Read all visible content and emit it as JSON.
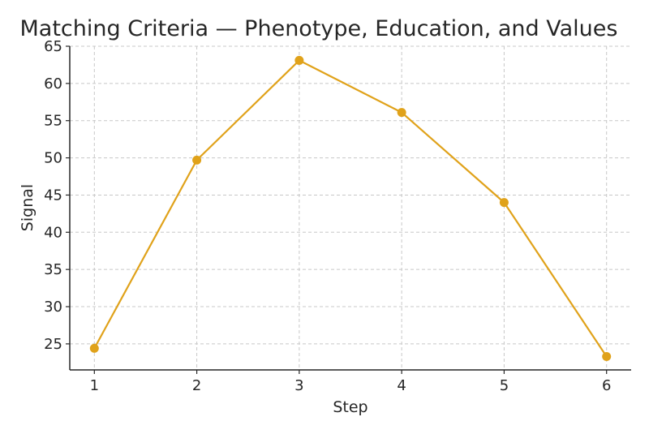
{
  "chart_data": {
    "type": "line",
    "title": "Matching Criteria — Phenotype, Education, and Values",
    "xlabel": "Step",
    "ylabel": "Signal",
    "x": [
      1,
      2,
      3,
      4,
      5,
      6
    ],
    "series": [
      {
        "values": [
          24.4,
          49.7,
          63.1,
          56.1,
          44.0,
          23.3
        ],
        "color": "#e0a21a"
      }
    ],
    "xlim": [
      0.76,
      6.24
    ],
    "ylim": [
      21.5,
      65
    ],
    "xticks": [
      1,
      2,
      3,
      4,
      5,
      6
    ],
    "yticks": [
      25,
      30,
      35,
      40,
      45,
      50,
      55,
      60,
      65
    ],
    "grid": true,
    "legend": "none"
  }
}
